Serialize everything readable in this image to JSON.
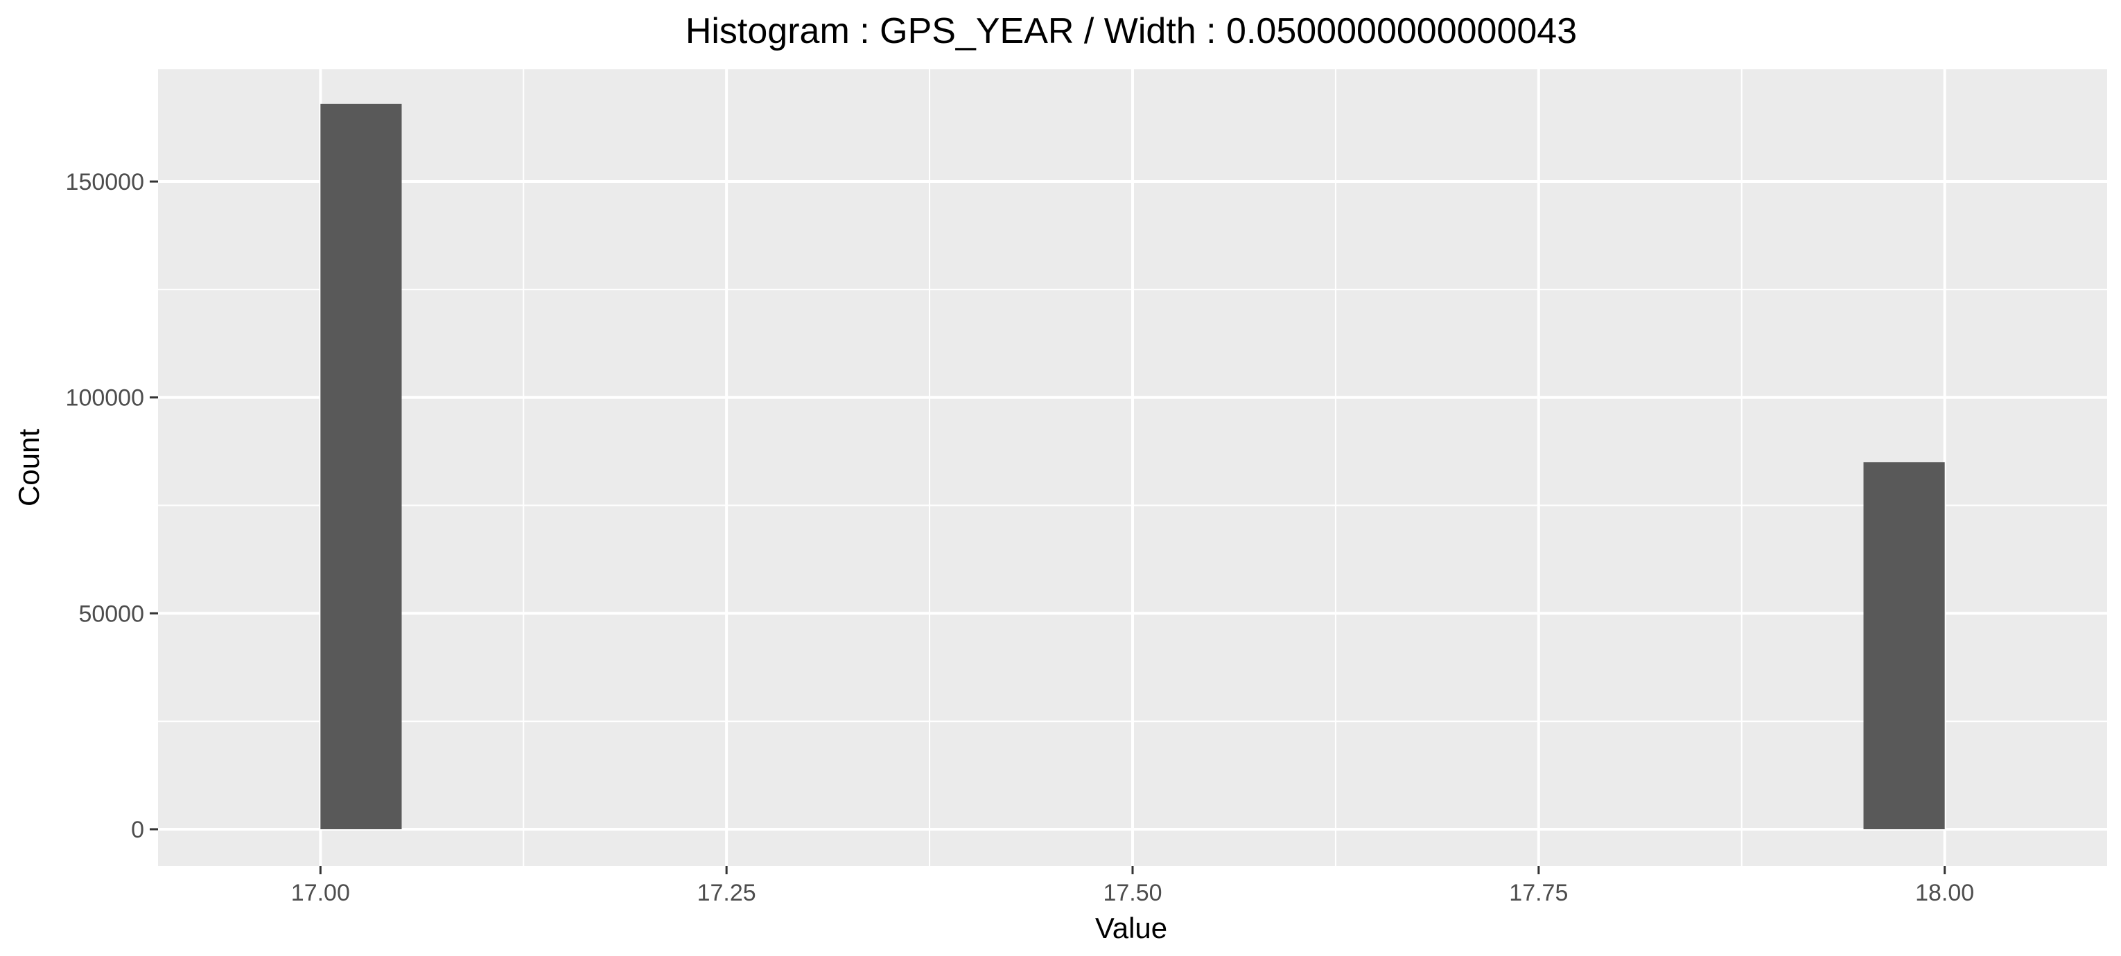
{
  "chart_data": {
    "type": "bar",
    "title": "Histogram : GPS_YEAR / Width : 0.0500000000000043",
    "xlabel": "Value",
    "ylabel": "Count",
    "bin_width": 0.0500000000000043,
    "bars": [
      {
        "x_start": 17.0,
        "x_end": 17.05,
        "value": 168000
      },
      {
        "x_start": 17.95,
        "x_end": 18.0,
        "value": 85000
      }
    ],
    "xlim": [
      16.9,
      18.1
    ],
    "ylim": [
      -8500,
      176000
    ],
    "x_ticks": [
      17.0,
      17.25,
      17.5,
      17.75,
      18.0
    ],
    "x_tick_labels": [
      "17.00",
      "17.25",
      "17.50",
      "17.75",
      "18.00"
    ],
    "y_ticks": [
      0,
      50000,
      100000,
      150000
    ],
    "y_tick_labels": [
      "0",
      "50000",
      "100000",
      "150000"
    ],
    "grid": true,
    "legend": "none"
  },
  "colors": {
    "panel_background": "#ebebeb",
    "grid_major": "#ffffff",
    "bar_fill": "#595959",
    "tick": "#333333"
  }
}
